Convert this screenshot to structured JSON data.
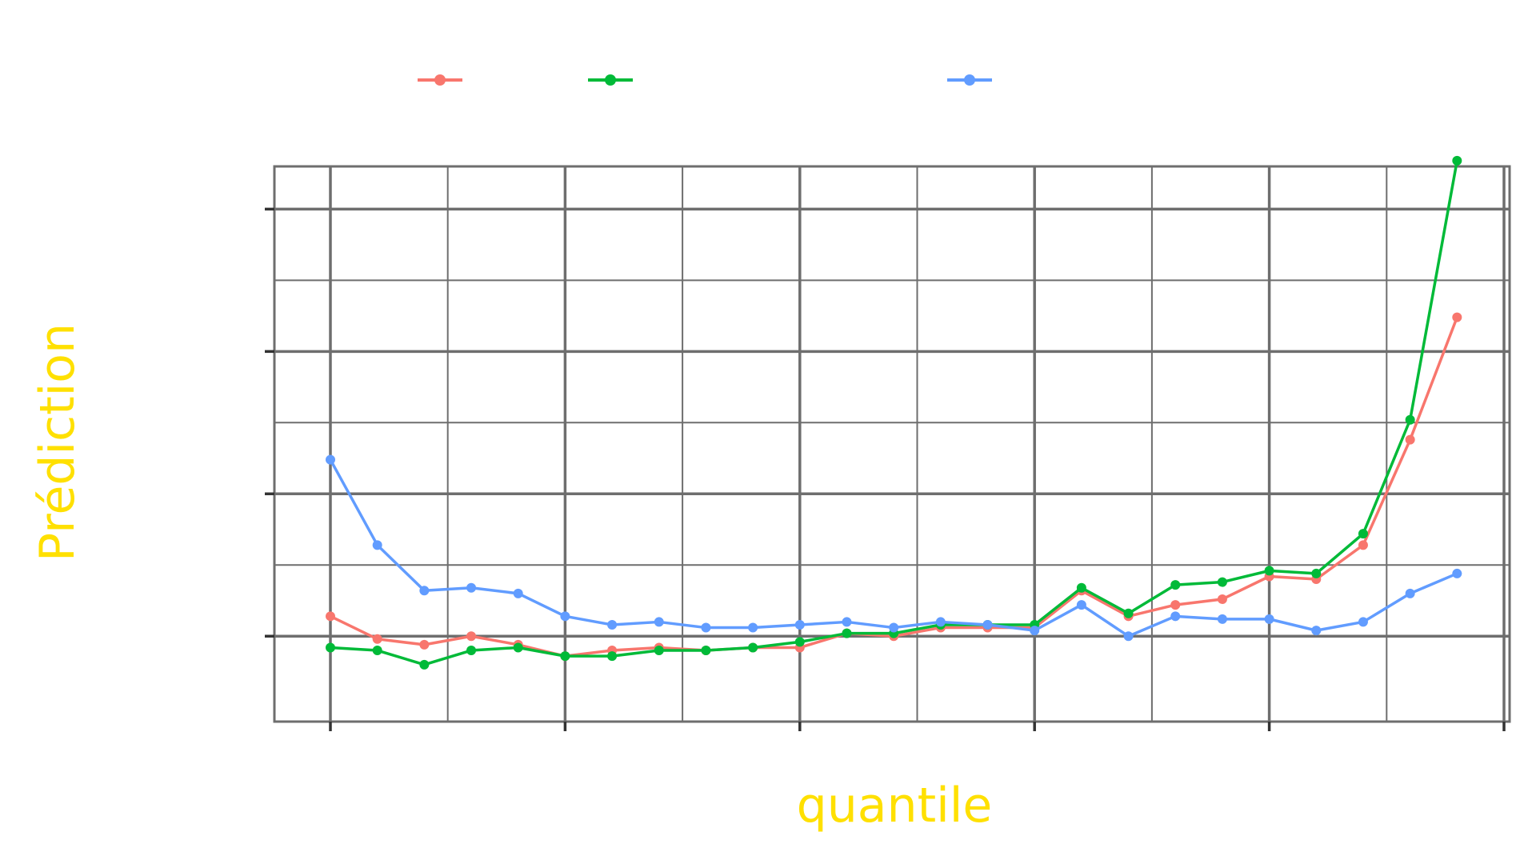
{
  "chart_data": {
    "type": "line",
    "xlabel": "quantile",
    "ylabel": "Prédiction",
    "xlim": [
      0.0,
      0.25
    ],
    "ylim": [
      0.7,
      2.65
    ],
    "x_ticks": [
      0.0,
      0.05,
      0.1,
      0.15,
      0.2,
      0.25
    ],
    "y_ticks": [
      1.0,
      1.5,
      2.0,
      2.5
    ],
    "grid": true,
    "legend_position": "top",
    "x": [
      0.0,
      0.01,
      0.02,
      0.03,
      0.04,
      0.05,
      0.06,
      0.07,
      0.08,
      0.09,
      0.1,
      0.11,
      0.12,
      0.13,
      0.14,
      0.15,
      0.16,
      0.17,
      0.18,
      0.19,
      0.2,
      0.21,
      0.22,
      0.23,
      0.24
    ],
    "series": [
      {
        "color": "#F8766D",
        "values": [
          1.07,
          0.99,
          0.97,
          1.0,
          0.97,
          0.93,
          0.95,
          0.96,
          0.95,
          0.96,
          0.96,
          1.01,
          1.0,
          1.03,
          1.03,
          1.03,
          1.16,
          1.07,
          1.11,
          1.13,
          1.21,
          1.2,
          1.32,
          1.69,
          2.12
        ]
      },
      {
        "color": "#00BA38",
        "values": [
          0.96,
          0.95,
          0.9,
          0.95,
          0.96,
          0.93,
          0.93,
          0.95,
          0.95,
          0.96,
          0.98,
          1.01,
          1.01,
          1.04,
          1.04,
          1.04,
          1.17,
          1.08,
          1.18,
          1.19,
          1.23,
          1.22,
          1.36,
          1.76,
          2.67
        ]
      },
      {
        "color": "#619CFF",
        "values": [
          1.62,
          1.32,
          1.16,
          1.17,
          1.15,
          1.07,
          1.04,
          1.05,
          1.03,
          1.03,
          1.04,
          1.05,
          1.03,
          1.05,
          1.04,
          1.02,
          1.11,
          1.0,
          1.07,
          1.06,
          1.06,
          1.02,
          1.05,
          1.15,
          1.22
        ]
      }
    ]
  }
}
